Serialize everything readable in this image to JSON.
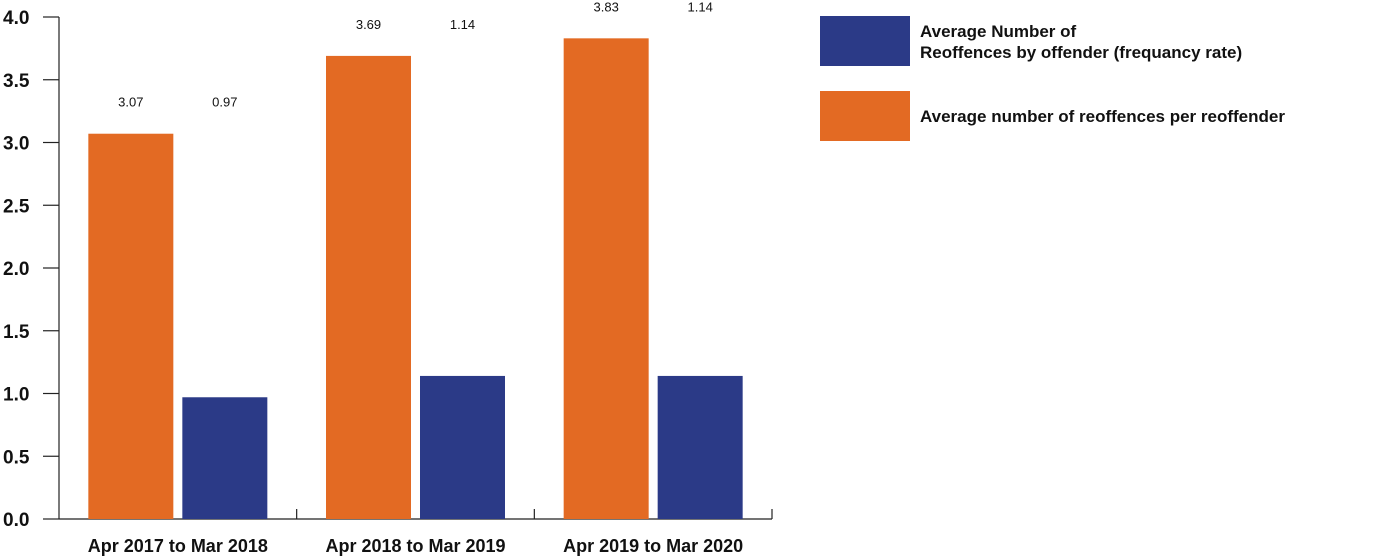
{
  "chart_data": {
    "type": "bar",
    "categories": [
      "Apr 2017 to Mar 2018",
      "Apr 2018 to Mar 2019",
      "Apr 2019 to Mar 2020"
    ],
    "series": [
      {
        "name": "Average number of reoffences per reoffender",
        "color": "#e36a23",
        "values": [
          3.07,
          3.69,
          3.83
        ],
        "labels": [
          "3.07",
          "3.69",
          "3.83"
        ]
      },
      {
        "name": "Average Number of Reoffences by offender (frequancy rate)",
        "color": "#2b3a87",
        "values": [
          0.97,
          1.14,
          1.14
        ],
        "labels": [
          "0.97",
          "1.14",
          "1.14"
        ]
      }
    ],
    "ylim": [
      0,
      4.0
    ],
    "yticks": [
      "0.0",
      "0.5",
      "1.0",
      "1.5",
      "2.0",
      "2.5",
      "3.0",
      "3.5",
      "4.0"
    ],
    "xlabel": "",
    "ylabel": "",
    "title": "",
    "grid": false,
    "legend": {
      "position": "top-right",
      "entries": [
        {
          "lines": [
            "Average Number of",
            "Reoffences by offender (frequancy rate)"
          ],
          "color": "#2b3a87"
        },
        {
          "lines": [
            "Average number of reoffences per reoffender"
          ],
          "color": "#e36a23"
        }
      ]
    }
  }
}
